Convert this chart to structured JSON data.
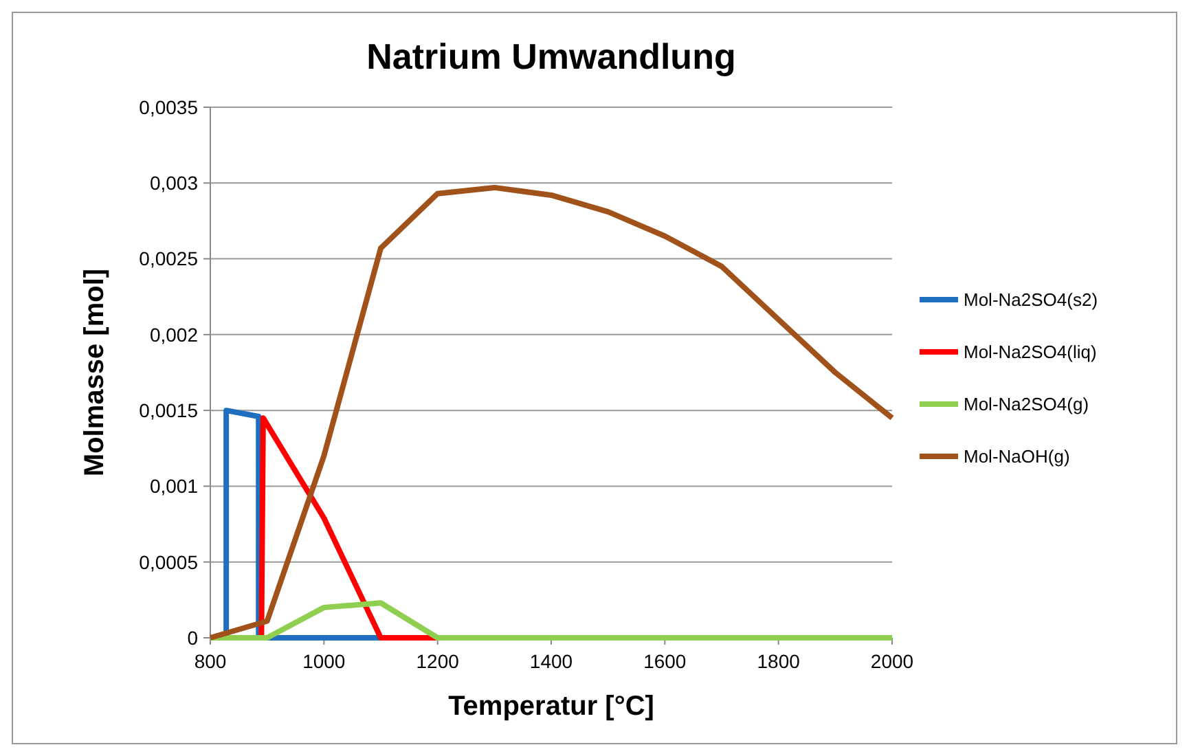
{
  "chart_data": {
    "type": "line",
    "title": "Natrium Umwandlung",
    "xlabel": "Temperatur [°C]",
    "ylabel": "Molmasse [mol]",
    "xlim": [
      800,
      2000
    ],
    "xticks": [
      800,
      1000,
      1200,
      1400,
      1600,
      1800,
      2000
    ],
    "ylim": [
      0,
      0.0035
    ],
    "yticks": [
      {
        "value": 0,
        "label": "0"
      },
      {
        "value": 0.0005,
        "label": "0,0005"
      },
      {
        "value": 0.001,
        "label": "0,001"
      },
      {
        "value": 0.0015,
        "label": "0,0015"
      },
      {
        "value": 0.002,
        "label": "0,002"
      },
      {
        "value": 0.0025,
        "label": "0,0025"
      },
      {
        "value": 0.003,
        "label": "0,003"
      },
      {
        "value": 0.0035,
        "label": "0,0035"
      }
    ],
    "grid": "y",
    "legend": "right",
    "marker": "none",
    "line_style": "solid",
    "series": [
      {
        "name": "Mol-Na2SO4(s2)",
        "color": "#1f6fc0",
        "x": [
          800,
          828,
          828,
          885,
          885,
          1100,
          1200
        ],
        "values": [
          0,
          0,
          0.0015,
          0.00146,
          0,
          0,
          0
        ]
      },
      {
        "name": "Mol-Na2SO4(liq)",
        "color": "#ff0000",
        "x": [
          890,
          893,
          1000,
          1100,
          1200
        ],
        "values": [
          0,
          0.00145,
          0.00079,
          0,
          0
        ]
      },
      {
        "name": "Mol-Na2SO4(g)",
        "color": "#8fcf50",
        "x": [
          800,
          900,
          1000,
          1100,
          1200,
          1400,
          1600,
          1800,
          2000
        ],
        "values": [
          0,
          0,
          0.0002,
          0.00023,
          0,
          0,
          0,
          0,
          0
        ]
      },
      {
        "name": "Mol-NaOH(g)",
        "color": "#a0521a",
        "x": [
          800,
          900,
          1000,
          1100,
          1200,
          1300,
          1400,
          1500,
          1600,
          1700,
          1800,
          1900,
          2000
        ],
        "values": [
          0,
          0.00011,
          0.0012,
          0.00257,
          0.00293,
          0.00297,
          0.00292,
          0.00281,
          0.00265,
          0.00245,
          0.0021,
          0.00175,
          0.00145
        ]
      }
    ]
  }
}
